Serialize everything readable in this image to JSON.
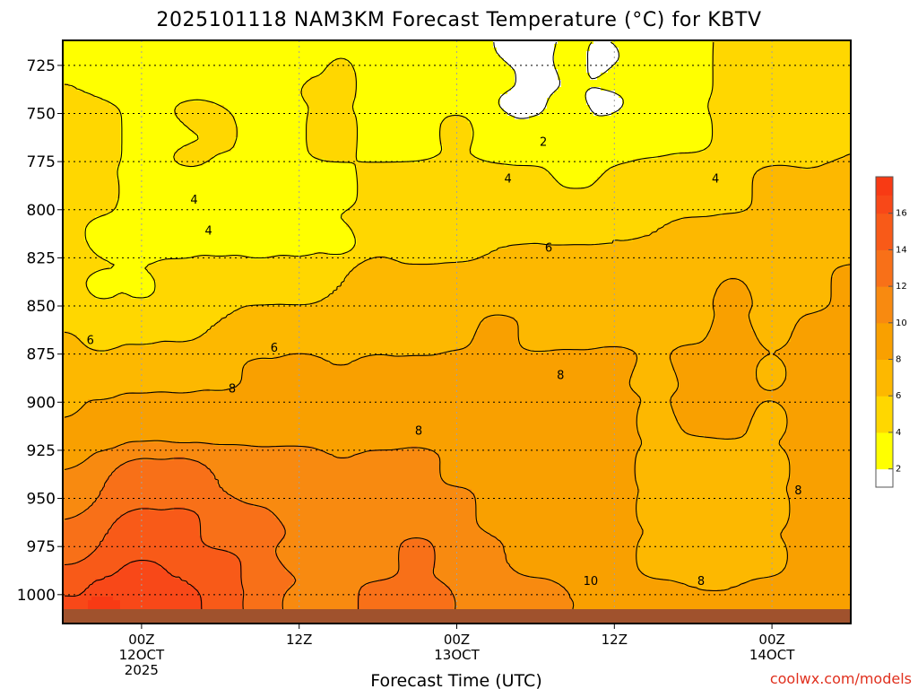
{
  "chart_data": {
    "type": "heatmap",
    "title": "2025101118 NAM3KM Forecast Temperature (°C) for KBTV",
    "xlabel": "Forecast Time (UTC)",
    "ylabel": "",
    "x_axis": {
      "units": "hours since 2025-10-11 18Z",
      "range": [
        0,
        60
      ],
      "ticks": [
        {
          "hour": 6,
          "lines": [
            "00Z",
            "12OCT",
            "2025"
          ]
        },
        {
          "hour": 18,
          "lines": [
            "12Z"
          ]
        },
        {
          "hour": 30,
          "lines": [
            "00Z",
            "13OCT"
          ]
        },
        {
          "hour": 42,
          "lines": [
            "12Z"
          ]
        },
        {
          "hour": 54,
          "lines": [
            "00Z",
            "14OCT"
          ]
        }
      ]
    },
    "y_axis": {
      "units": "hPa",
      "range": [
        1015,
        712
      ],
      "ticks": [
        725,
        750,
        775,
        800,
        825,
        850,
        875,
        900,
        925,
        950,
        975,
        1000
      ]
    },
    "grid": true,
    "colorbar": {
      "ticks": [
        2,
        4,
        6,
        8,
        10,
        12,
        14,
        16
      ],
      "levels": [
        {
          "min": null,
          "max": 2,
          "color": "#ffffff"
        },
        {
          "min": 2,
          "max": 3,
          "color": "#ffff00"
        },
        {
          "min": 3,
          "max": 4,
          "color": "#ffff00"
        },
        {
          "min": 4,
          "max": 5,
          "color": "#ffd700"
        },
        {
          "min": 5,
          "max": 6,
          "color": "#ffd700"
        },
        {
          "min": 6,
          "max": 7,
          "color": "#fdb800"
        },
        {
          "min": 7,
          "max": 8,
          "color": "#fdb800"
        },
        {
          "min": 8,
          "max": 9,
          "color": "#f9a000"
        },
        {
          "min": 9,
          "max": 10,
          "color": "#f9a000"
        },
        {
          "min": 10,
          "max": 11,
          "color": "#f88a10"
        },
        {
          "min": 11,
          "max": 12,
          "color": "#f88a10"
        },
        {
          "min": 12,
          "max": 13,
          "color": "#f87018"
        },
        {
          "min": 13,
          "max": 14,
          "color": "#f87018"
        },
        {
          "min": 14,
          "max": 15,
          "color": "#f85a18"
        },
        {
          "min": 15,
          "max": 16,
          "color": "#f85a18"
        },
        {
          "min": 16,
          "max": 17,
          "color": "#f84818"
        },
        {
          "min": 17,
          "max": null,
          "color": "#f83a14"
        }
      ]
    },
    "ground_color": "#a0522d",
    "contour_labels": [
      {
        "value": "2",
        "hour": 36.6,
        "pressure": 765
      },
      {
        "value": "4",
        "hour": 33.9,
        "pressure": 784
      },
      {
        "value": "4",
        "hour": 49.7,
        "pressure": 784
      },
      {
        "value": "4",
        "hour": 10.0,
        "pressure": 795
      },
      {
        "value": "4",
        "hour": 11.1,
        "pressure": 811
      },
      {
        "value": "6",
        "hour": 37.0,
        "pressure": 820
      },
      {
        "value": "6",
        "hour": 2.1,
        "pressure": 868
      },
      {
        "value": "6",
        "hour": 16.1,
        "pressure": 872
      },
      {
        "value": "8",
        "hour": 12.9,
        "pressure": 893
      },
      {
        "value": "8",
        "hour": 27.1,
        "pressure": 915
      },
      {
        "value": "8",
        "hour": 37.9,
        "pressure": 886
      },
      {
        "value": "8",
        "hour": 56.0,
        "pressure": 946
      },
      {
        "value": "8",
        "hour": 48.6,
        "pressure": 993
      },
      {
        "value": "10",
        "hour": 40.2,
        "pressure": 993
      }
    ],
    "points": [
      [
        0,
        735,
        4
      ],
      [
        0,
        760,
        4.4
      ],
      [
        0,
        790,
        5
      ],
      [
        0,
        820,
        5.2
      ],
      [
        0,
        850,
        5.7
      ],
      [
        0,
        875,
        6.2
      ],
      [
        0,
        900,
        7.8
      ],
      [
        0,
        925,
        9.5
      ],
      [
        0,
        950,
        11.2
      ],
      [
        0,
        975,
        13
      ],
      [
        0,
        995,
        15
      ],
      [
        0,
        1005,
        16.5
      ],
      [
        3,
        730,
        4
      ],
      [
        3,
        760,
        4.5
      ],
      [
        3,
        790,
        4.1
      ],
      [
        3,
        815,
        3.8
      ],
      [
        3,
        840,
        3.9
      ],
      [
        3,
        865,
        5.8
      ],
      [
        3,
        890,
        7.8
      ],
      [
        3,
        915,
        9.8
      ],
      [
        3,
        945,
        12
      ],
      [
        3,
        970,
        14
      ],
      [
        3,
        995,
        16
      ],
      [
        3,
        1005,
        17.2
      ],
      [
        6,
        725,
        2.6
      ],
      [
        6,
        760,
        3.5
      ],
      [
        6,
        790,
        3.7
      ],
      [
        6,
        815,
        3.6
      ],
      [
        6,
        840,
        3.9
      ],
      [
        6,
        860,
        5.6
      ],
      [
        6,
        885,
        7.5
      ],
      [
        6,
        910,
        9.8
      ],
      [
        6,
        940,
        12.5
      ],
      [
        6,
        965,
        14.5
      ],
      [
        6,
        990,
        16.2
      ],
      [
        6,
        1005,
        17
      ],
      [
        9,
        725,
        3
      ],
      [
        9,
        760,
        3.3
      ],
      [
        9,
        790,
        3.4
      ],
      [
        9,
        815,
        3.7
      ],
      [
        9,
        840,
        4.8
      ],
      [
        9,
        860,
        5.8
      ],
      [
        9,
        885,
        7.5
      ],
      [
        9,
        910,
        9.6
      ],
      [
        9,
        940,
        12.5
      ],
      [
        9,
        965,
        14.5
      ],
      [
        9,
        990,
        16
      ],
      [
        9,
        1005,
        16.8
      ],
      [
        10,
        755,
        4.5
      ],
      [
        10,
        770,
        4.2
      ],
      [
        12,
        725,
        3.2
      ],
      [
        12,
        760,
        4.3
      ],
      [
        12,
        785,
        3
      ],
      [
        12,
        815,
        3.8
      ],
      [
        12,
        840,
        5.1
      ],
      [
        12,
        860,
        6
      ],
      [
        12,
        885,
        7.8
      ],
      [
        12,
        910,
        9.5
      ],
      [
        12,
        940,
        12
      ],
      [
        12,
        965,
        13.5
      ],
      [
        12,
        990,
        15
      ],
      [
        12,
        1005,
        15.5
      ],
      [
        15,
        730,
        2.8
      ],
      [
        15,
        760,
        3
      ],
      [
        15,
        790,
        3.2
      ],
      [
        15,
        815,
        3.5
      ],
      [
        15,
        840,
        5.5
      ],
      [
        15,
        860,
        6.8
      ],
      [
        15,
        885,
        8.1
      ],
      [
        15,
        910,
        9.5
      ],
      [
        15,
        940,
        11
      ],
      [
        15,
        965,
        12.5
      ],
      [
        15,
        990,
        13.3
      ],
      [
        15,
        1005,
        13.5
      ],
      [
        18,
        730,
        3
      ],
      [
        18,
        760,
        3.4
      ],
      [
        18,
        790,
        3.5
      ],
      [
        18,
        815,
        3.7
      ],
      [
        18,
        840,
        5.3
      ],
      [
        18,
        860,
        7
      ],
      [
        18,
        885,
        8.4
      ],
      [
        18,
        910,
        9.5
      ],
      [
        18,
        935,
        10.5
      ],
      [
        18,
        955,
        11.2
      ],
      [
        18,
        980,
        11.5
      ],
      [
        18,
        1005,
        11.5
      ],
      [
        19,
        735,
        4.2
      ],
      [
        19,
        760,
        4.5
      ],
      [
        21,
        735,
        4.5
      ],
      [
        21,
        760,
        4.5
      ],
      [
        21,
        790,
        3.6
      ],
      [
        21,
        815,
        3.7
      ],
      [
        21,
        840,
        6
      ],
      [
        21,
        860,
        7
      ],
      [
        21,
        885,
        8
      ],
      [
        21,
        910,
        9.2
      ],
      [
        21,
        935,
        10
      ],
      [
        21,
        955,
        10.3
      ],
      [
        21,
        980,
        10.8
      ],
      [
        21,
        1005,
        11.5
      ],
      [
        24,
        735,
        3
      ],
      [
        24,
        760,
        3.3
      ],
      [
        24,
        790,
        4.5
      ],
      [
        24,
        810,
        5.5
      ],
      [
        24,
        835,
        6.5
      ],
      [
        24,
        860,
        7.2
      ],
      [
        24,
        885,
        8.2
      ],
      [
        24,
        910,
        9.3
      ],
      [
        24,
        935,
        10.2
      ],
      [
        24,
        955,
        10.8
      ],
      [
        24,
        980,
        11.5
      ],
      [
        24,
        1005,
        12.5
      ],
      [
        27,
        735,
        3
      ],
      [
        27,
        760,
        3.5
      ],
      [
        27,
        790,
        4.3
      ],
      [
        27,
        815,
        4.8
      ],
      [
        27,
        840,
        6.6
      ],
      [
        27,
        865,
        7.5
      ],
      [
        27,
        885,
        8.3
      ],
      [
        27,
        910,
        9.3
      ],
      [
        27,
        935,
        10.6
      ],
      [
        27,
        955,
        11.3
      ],
      [
        27,
        980,
        12.4
      ],
      [
        27,
        1005,
        13.5
      ],
      [
        30,
        730,
        3.5
      ],
      [
        30,
        760,
        4.2
      ],
      [
        30,
        790,
        5
      ],
      [
        30,
        815,
        5.2
      ],
      [
        30,
        840,
        6.8
      ],
      [
        30,
        860,
        7.5
      ],
      [
        30,
        885,
        8.3
      ],
      [
        30,
        910,
        8.7
      ],
      [
        30,
        935,
        9.8
      ],
      [
        30,
        955,
        10.5
      ],
      [
        30,
        980,
        11.2
      ],
      [
        30,
        1005,
        12
      ],
      [
        33,
        730,
        2.6
      ],
      [
        33,
        760,
        3.4
      ],
      [
        33,
        790,
        4.3
      ],
      [
        33,
        815,
        6
      ],
      [
        33,
        840,
        7.1
      ],
      [
        33,
        865,
        8.5
      ],
      [
        33,
        885,
        8.8
      ],
      [
        33,
        910,
        9
      ],
      [
        33,
        935,
        8.9
      ],
      [
        33,
        955,
        9.4
      ],
      [
        33,
        980,
        10
      ],
      [
        33,
        1005,
        10.5
      ],
      [
        35,
        720,
        1.5
      ],
      [
        35,
        745,
        1.5
      ],
      [
        36,
        730,
        1.5
      ],
      [
        36,
        760,
        2.5
      ],
      [
        36,
        790,
        4.6
      ],
      [
        36,
        815,
        6
      ],
      [
        36,
        840,
        7
      ],
      [
        36,
        865,
        7.8
      ],
      [
        36,
        885,
        8.5
      ],
      [
        36,
        910,
        9
      ],
      [
        36,
        935,
        9.2
      ],
      [
        36,
        955,
        9.4
      ],
      [
        36,
        980,
        9.8
      ],
      [
        36,
        1005,
        10.5
      ],
      [
        39,
        725,
        2.4
      ],
      [
        39,
        750,
        3
      ],
      [
        39,
        780,
        3.5
      ],
      [
        39,
        800,
        4.8
      ],
      [
        39,
        830,
        6.2
      ],
      [
        39,
        860,
        7.8
      ],
      [
        39,
        885,
        8.2
      ],
      [
        39,
        910,
        8.8
      ],
      [
        39,
        935,
        9.2
      ],
      [
        39,
        955,
        9.4
      ],
      [
        39,
        980,
        9.7
      ],
      [
        39,
        1005,
        10
      ],
      [
        41,
        725,
        1.5
      ],
      [
        41,
        745,
        1.6
      ],
      [
        42,
        730,
        2.6
      ],
      [
        42,
        760,
        3.4
      ],
      [
        42,
        790,
        4.2
      ],
      [
        42,
        815,
        6
      ],
      [
        42,
        840,
        7
      ],
      [
        42,
        860,
        7.6
      ],
      [
        42,
        880,
        8.2
      ],
      [
        42,
        910,
        8.5
      ],
      [
        42,
        935,
        8.5
      ],
      [
        42,
        955,
        8.6
      ],
      [
        42,
        980,
        8.8
      ],
      [
        42,
        1005,
        9.5
      ],
      [
        45,
        725,
        3
      ],
      [
        45,
        760,
        3.7
      ],
      [
        45,
        790,
        4.8
      ],
      [
        45,
        815,
        6
      ],
      [
        45,
        840,
        7.3
      ],
      [
        45,
        860,
        7.6
      ],
      [
        45,
        885,
        7.8
      ],
      [
        45,
        910,
        7.8
      ],
      [
        45,
        935,
        7.6
      ],
      [
        45,
        955,
        7.7
      ],
      [
        45,
        980,
        7.6
      ],
      [
        45,
        1005,
        8.2
      ],
      [
        48,
        725,
        3.5
      ],
      [
        48,
        760,
        3.8
      ],
      [
        48,
        790,
        5
      ],
      [
        48,
        815,
        6.5
      ],
      [
        48,
        840,
        7.2
      ],
      [
        48,
        860,
        7.8
      ],
      [
        48,
        880,
        8.2
      ],
      [
        48,
        905,
        8.1
      ],
      [
        48,
        935,
        7.7
      ],
      [
        48,
        955,
        7.6
      ],
      [
        48,
        980,
        7.8
      ],
      [
        48,
        1005,
        8
      ],
      [
        51,
        725,
        4.5
      ],
      [
        51,
        760,
        4.2
      ],
      [
        51,
        790,
        5.5
      ],
      [
        51,
        815,
        6.6
      ],
      [
        51,
        845,
        8.3
      ],
      [
        51,
        865,
        8.6
      ],
      [
        51,
        885,
        8.4
      ],
      [
        51,
        905,
        8.2
      ],
      [
        51,
        935,
        7.8
      ],
      [
        51,
        955,
        7.7
      ],
      [
        51,
        980,
        7.8
      ],
      [
        51,
        1005,
        8
      ],
      [
        54,
        725,
        4.6
      ],
      [
        54,
        760,
        5.5
      ],
      [
        54,
        790,
        6.5
      ],
      [
        54,
        815,
        7
      ],
      [
        54,
        840,
        7.3
      ],
      [
        54,
        860,
        7.6
      ],
      [
        54,
        885,
        7.9
      ],
      [
        54,
        910,
        7.8
      ],
      [
        54,
        935,
        7.6
      ],
      [
        54,
        955,
        7.6
      ],
      [
        54,
        980,
        7.8
      ],
      [
        54,
        1005,
        8.2
      ],
      [
        57,
        725,
        5
      ],
      [
        57,
        760,
        5.5
      ],
      [
        57,
        790,
        6
      ],
      [
        57,
        815,
        7
      ],
      [
        57,
        840,
        7.5
      ],
      [
        57,
        865,
        8.2
      ],
      [
        57,
        885,
        8.8
      ],
      [
        57,
        910,
        9
      ],
      [
        57,
        935,
        8.8
      ],
      [
        57,
        955,
        8.8
      ],
      [
        57,
        980,
        8.9
      ],
      [
        57,
        1005,
        9
      ],
      [
        60,
        725,
        5.5
      ],
      [
        60,
        760,
        6
      ],
      [
        60,
        790,
        6.5
      ],
      [
        60,
        815,
        7.5
      ],
      [
        60,
        840,
        8.5
      ],
      [
        60,
        865,
        9
      ],
      [
        60,
        885,
        9.2
      ],
      [
        60,
        910,
        9.2
      ],
      [
        60,
        935,
        9.2
      ],
      [
        60,
        955,
        9
      ],
      [
        60,
        980,
        8.8
      ],
      [
        60,
        1005,
        8.8
      ]
    ]
  },
  "credit": "coolwx.com/models"
}
